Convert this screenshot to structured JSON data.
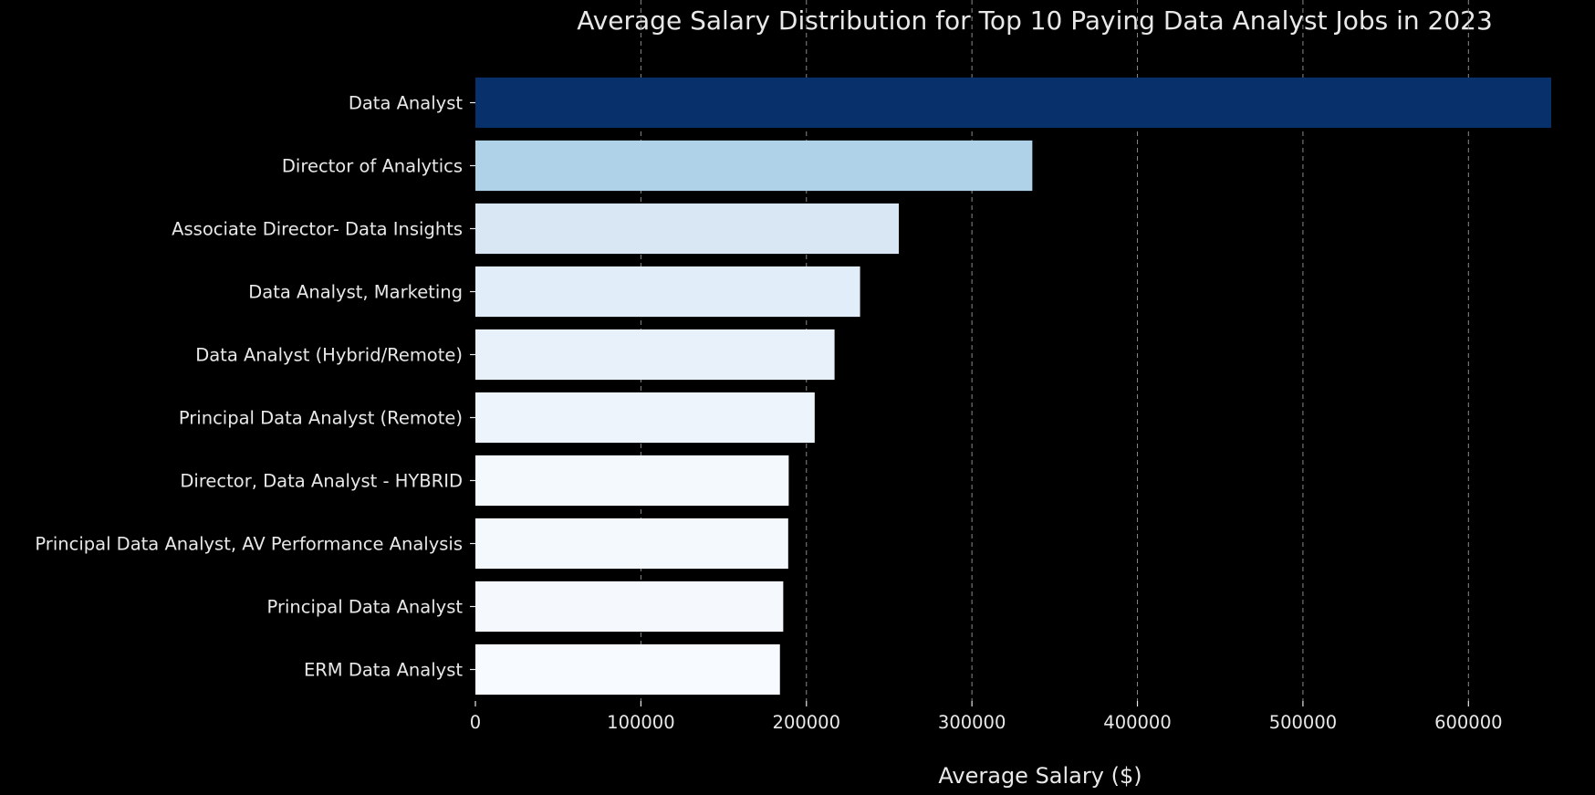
{
  "chart_data": {
    "type": "bar",
    "orientation": "horizontal",
    "title": "Average Salary Distribution for Top 10 Paying Data Analyst Jobs in 2023",
    "xlabel": "Average Salary ($)",
    "ylabel": "",
    "categories": [
      "Data Analyst",
      "Director of Analytics",
      "Associate Director- Data Insights",
      "Data Analyst, Marketing",
      "Data Analyst (Hybrid/Remote)",
      "Principal Data Analyst (Remote)",
      "Director, Data Analyst - HYBRID",
      "Principal Data Analyst, AV Performance Analysis",
      "Principal Data Analyst",
      "ERM Data Analyst"
    ],
    "values": [
      650000,
      336500,
      255829.5,
      232423,
      217000,
      205000,
      189309,
      189000,
      186000,
      184000
    ],
    "bar_colors": [
      "#08306b",
      "#b0d2e8",
      "#d9e7f5",
      "#e1edf8",
      "#e8f1fa",
      "#edf4fc",
      "#f4f9fe",
      "#f4f9fe",
      "#f5f9fe",
      "#f7fbff"
    ],
    "xticks": [
      0,
      100000,
      200000,
      300000,
      400000,
      500000,
      600000
    ],
    "xtick_labels": [
      "0",
      "100000",
      "200000",
      "300000",
      "400000",
      "500000",
      "600000"
    ],
    "xlim": [
      0,
      650000
    ],
    "grid": "x-axis dashed",
    "background": "#000000",
    "text_color": "#e8e8e8"
  }
}
